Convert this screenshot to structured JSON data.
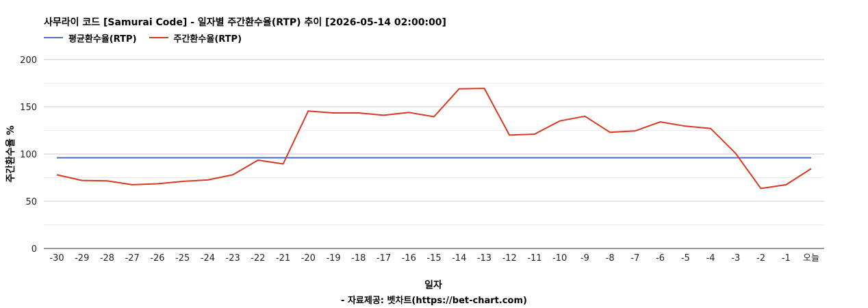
{
  "chart_data": {
    "type": "line",
    "title": "사무라이 코드 [Samurai Code] - 일자별 주간환수율(RTP) 추이 [2026-05-14 02:00:00]",
    "xlabel": "일자",
    "ylabel": "주간환수율 %",
    "source": "- 자료제공: 벳차트(https://bet-chart.com)",
    "categories": [
      "-30",
      "-29",
      "-28",
      "-27",
      "-26",
      "-25",
      "-24",
      "-23",
      "-22",
      "-21",
      "-20",
      "-19",
      "-18",
      "-17",
      "-16",
      "-15",
      "-14",
      "-13",
      "-12",
      "-11",
      "-10",
      "-9",
      "-8",
      "-7",
      "-6",
      "-5",
      "-4",
      "-3",
      "-2",
      "-1",
      "오늘"
    ],
    "ylim": [
      0,
      200
    ],
    "yticks": [
      0,
      50,
      100,
      150,
      200
    ],
    "grid": true,
    "legend_position": "top-left",
    "series": [
      {
        "name": "평균환수율(RTP)",
        "color": "#4472c4",
        "values": [
          96,
          96,
          96,
          96,
          96,
          96,
          96,
          96,
          96,
          96,
          96,
          96,
          96,
          96,
          96,
          96,
          96,
          96,
          96,
          96,
          96,
          96,
          96,
          96,
          96,
          96,
          96,
          96,
          96,
          96,
          96
        ]
      },
      {
        "name": "주간환수율(RTP)",
        "color": "#d9381e",
        "values": [
          78,
          72,
          71.5,
          67.5,
          68.5,
          71,
          72.5,
          78,
          93.5,
          89.5,
          145.5,
          143.5,
          143.5,
          141,
          144,
          139.5,
          169,
          169.5,
          120,
          121,
          135,
          140,
          123,
          124.5,
          134,
          129.5,
          127,
          100.5,
          63.5,
          67.5,
          84.5
        ]
      }
    ]
  }
}
